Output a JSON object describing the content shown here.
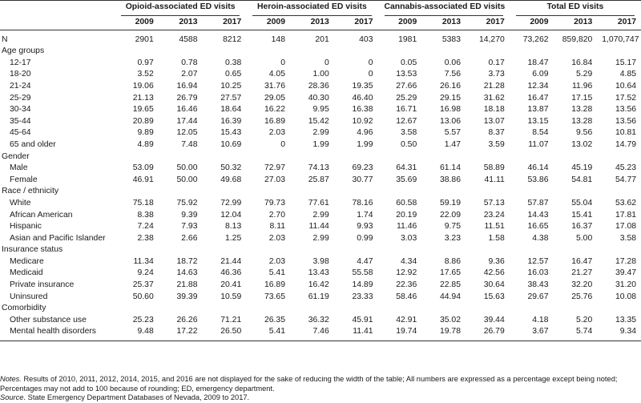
{
  "header": {
    "groups": [
      "Opioid-associated ED visits",
      "Heroin-associated ED visits",
      "Cannabis-associated ED visits",
      "Total ED visits"
    ],
    "years": [
      "2009",
      "2013",
      "2017"
    ]
  },
  "rows": [
    {
      "label": "N",
      "indent": false,
      "values": [
        "2901",
        "4588",
        "8212",
        "148",
        "201",
        "403",
        "1981",
        "5383",
        "14,270",
        "73,262",
        "859,820",
        "1,070,747"
      ]
    },
    {
      "label": "Age groups",
      "indent": false,
      "values": []
    },
    {
      "label": "12-17",
      "indent": true,
      "values": [
        "0.97",
        "0.78",
        "0.38",
        "0",
        "0",
        "0",
        "0.05",
        "0.06",
        "0.17",
        "18.47",
        "16.84",
        "15.17"
      ]
    },
    {
      "label": "18-20",
      "indent": true,
      "values": [
        "3.52",
        "2.07",
        "0.65",
        "4.05",
        "1.00",
        "0",
        "13.53",
        "7.56",
        "3.73",
        "6.09",
        "5.29",
        "4.85"
      ]
    },
    {
      "label": "21-24",
      "indent": true,
      "values": [
        "19.06",
        "16.94",
        "10.25",
        "31.76",
        "28.36",
        "19.35",
        "27.66",
        "26.16",
        "21.28",
        "12.34",
        "11.96",
        "10.64"
      ]
    },
    {
      "label": "25-29",
      "indent": true,
      "values": [
        "21.13",
        "26.79",
        "27.57",
        "29.05",
        "40.30",
        "46.40",
        "25.29",
        "29.15",
        "31.62",
        "16.47",
        "17.15",
        "17.52"
      ]
    },
    {
      "label": "30-34",
      "indent": true,
      "values": [
        "19.65",
        "16.46",
        "18.64",
        "16.22",
        "9.95",
        "16.38",
        "16.71",
        "16.98",
        "18.18",
        "13.87",
        "13.28",
        "13.56"
      ]
    },
    {
      "label": "35-44",
      "indent": true,
      "values": [
        "20.89",
        "17.44",
        "16.39",
        "16.89",
        "15.42",
        "10.92",
        "12.67",
        "13.06",
        "13.07",
        "13.15",
        "13.28",
        "13.56"
      ]
    },
    {
      "label": "45-64",
      "indent": true,
      "values": [
        "9.89",
        "12.05",
        "15.43",
        "2.03",
        "2.99",
        "4.96",
        "3.58",
        "5.57",
        "8.37",
        "8.54",
        "9.56",
        "10.81"
      ]
    },
    {
      "label": "65 and older",
      "indent": true,
      "values": [
        "4.89",
        "7.48",
        "10.69",
        "0",
        "1.99",
        "1.99",
        "0.50",
        "1.47",
        "3.59",
        "11.07",
        "13.02",
        "14.79"
      ]
    },
    {
      "label": "Gender",
      "indent": false,
      "values": []
    },
    {
      "label": "Male",
      "indent": true,
      "values": [
        "53.09",
        "50.00",
        "50.32",
        "72.97",
        "74.13",
        "69.23",
        "64.31",
        "61.14",
        "58.89",
        "46.14",
        "45.19",
        "45.23"
      ]
    },
    {
      "label": "Female",
      "indent": true,
      "values": [
        "46.91",
        "50.00",
        "49.68",
        "27.03",
        "25.87",
        "30.77",
        "35.69",
        "38.86",
        "41.11",
        "53.86",
        "54.81",
        "54.77"
      ]
    },
    {
      "label": "Race / ethnicity",
      "indent": false,
      "values": []
    },
    {
      "label": "White",
      "indent": true,
      "values": [
        "75.18",
        "75.92",
        "72.99",
        "79.73",
        "77.61",
        "78.16",
        "60.58",
        "59.19",
        "57.13",
        "57.87",
        "55.04",
        "53.62"
      ]
    },
    {
      "label": "African American",
      "indent": true,
      "values": [
        "8.38",
        "9.39",
        "12.04",
        "2.70",
        "2.99",
        "1.74",
        "20.19",
        "22.09",
        "23.24",
        "14.43",
        "15.41",
        "17.81"
      ]
    },
    {
      "label": "Hispanic",
      "indent": true,
      "values": [
        "7.24",
        "7.93",
        "8.13",
        "8.11",
        "11.44",
        "9.93",
        "11.46",
        "9.75",
        "11.51",
        "16.65",
        "16.37",
        "17.08"
      ]
    },
    {
      "label": "Asian and Pacific Islander",
      "indent": true,
      "values": [
        "2.38",
        "2.66",
        "1.25",
        "2.03",
        "2.99",
        "0.99",
        "3.03",
        "3.23",
        "1.58",
        "4.38",
        "5.00",
        "3.58"
      ]
    },
    {
      "label": "Insurance status",
      "indent": false,
      "values": []
    },
    {
      "label": "Medicare",
      "indent": true,
      "values": [
        "11.34",
        "18.72",
        "21.44",
        "2.03",
        "3.98",
        "4.47",
        "4.34",
        "8.86",
        "9.36",
        "12.57",
        "16.47",
        "17.28"
      ]
    },
    {
      "label": "Medicaid",
      "indent": true,
      "values": [
        "9.24",
        "14.63",
        "46.36",
        "5.41",
        "13.43",
        "55.58",
        "12.92",
        "17.65",
        "42.56",
        "16.03",
        "21.27",
        "39.47"
      ]
    },
    {
      "label": "Private insurance",
      "indent": true,
      "values": [
        "25.37",
        "21.88",
        "20.41",
        "16.89",
        "16.42",
        "14.89",
        "22.36",
        "22.85",
        "30.64",
        "38.43",
        "32.20",
        "31.20"
      ]
    },
    {
      "label": "Uninsured",
      "indent": true,
      "values": [
        "50.60",
        "39.39",
        "10.59",
        "73.65",
        "61.19",
        "23.33",
        "58.46",
        "44.94",
        "15.63",
        "29.67",
        "25.76",
        "10.08"
      ]
    },
    {
      "label": "Comorbidity",
      "indent": false,
      "values": []
    },
    {
      "label": "Other substance use",
      "indent": true,
      "values": [
        "25.23",
        "26.26",
        "71.21",
        "26.35",
        "36.32",
        "45.91",
        "42.91",
        "35.02",
        "39.44",
        "4.18",
        "5.20",
        "13.35"
      ]
    },
    {
      "label": "Mental health disorders",
      "indent": true,
      "values": [
        "9.48",
        "17.22",
        "26.50",
        "5.41",
        "7.46",
        "11.41",
        "19.74",
        "19.78",
        "26.79",
        "3.67",
        "5.74",
        "9.34"
      ]
    }
  ],
  "notes": {
    "notes_label": "Notes.",
    "notes_text": " Results of 2010, 2011, 2012, 2014, 2015, and 2016 are not displayed for the sake of reducing the width of the table; All numbers are expressed as a percentage except being noted; Percentages may not add to 100 because of rounding; ED, emergency department.",
    "source_label": "Source.",
    "source_text": " State Emergency Department Databases of Nevada, 2009 to 2017."
  }
}
